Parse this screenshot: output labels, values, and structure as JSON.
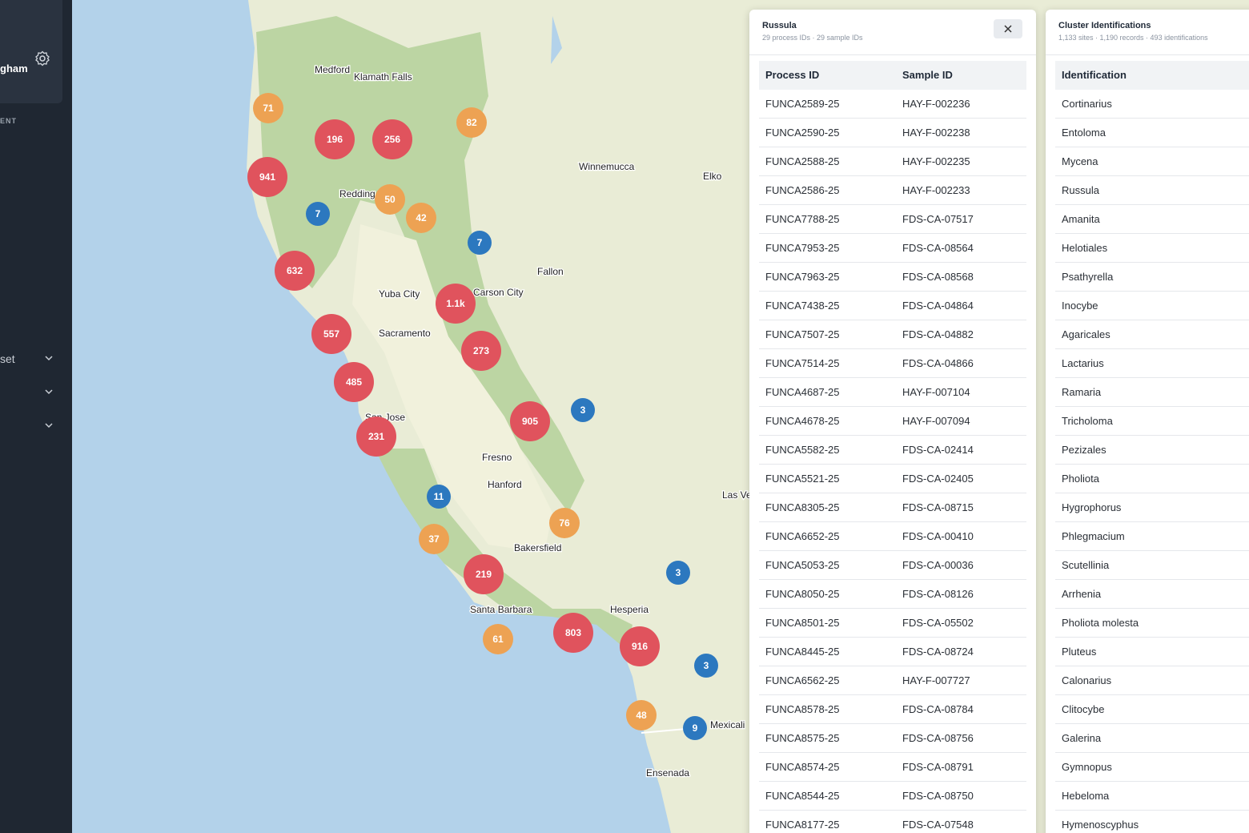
{
  "sidebar": {
    "user_name": "gham",
    "section_label": "ENT",
    "nav_items": [
      "set"
    ]
  },
  "map": {
    "places": [
      "Medford",
      "Klamath Falls",
      "Winnemucca",
      "Elko",
      "Redding",
      "Fallon",
      "Yuba City",
      "Carson City",
      "Sacramento",
      "San Jose",
      "Fresno",
      "Hanford",
      "Las Vegas",
      "Bakersfield",
      "Santa Barbara",
      "Hesperia",
      "Mexicali",
      "Ensenada"
    ],
    "clusters": [
      {
        "label": "71",
        "color": "#eda253"
      },
      {
        "label": "196",
        "color": "#e0535d"
      },
      {
        "label": "256",
        "color": "#e0535d"
      },
      {
        "label": "82",
        "color": "#eda253"
      },
      {
        "label": "941",
        "color": "#e0535d"
      },
      {
        "label": "7",
        "color": "#2c78bf"
      },
      {
        "label": "50",
        "color": "#eda253"
      },
      {
        "label": "42",
        "color": "#eda253"
      },
      {
        "label": "7",
        "color": "#2c78bf"
      },
      {
        "label": "632",
        "color": "#e0535d"
      },
      {
        "label": "1.1k",
        "color": "#e0535d"
      },
      {
        "label": "557",
        "color": "#e0535d"
      },
      {
        "label": "273",
        "color": "#e0535d"
      },
      {
        "label": "485",
        "color": "#e0535d"
      },
      {
        "label": "3",
        "color": "#2c78bf"
      },
      {
        "label": "905",
        "color": "#e0535d"
      },
      {
        "label": "231",
        "color": "#e0535d"
      },
      {
        "label": "11",
        "color": "#2c78bf"
      },
      {
        "label": "76",
        "color": "#eda253"
      },
      {
        "label": "37",
        "color": "#eda253"
      },
      {
        "label": "219",
        "color": "#e0535d"
      },
      {
        "label": "3",
        "color": "#2c78bf"
      },
      {
        "label": "61",
        "color": "#eda253"
      },
      {
        "label": "803",
        "color": "#e0535d"
      },
      {
        "label": "916",
        "color": "#e0535d"
      },
      {
        "label": "3",
        "color": "#2c78bf"
      },
      {
        "label": "48",
        "color": "#eda253"
      },
      {
        "label": "9",
        "color": "#2c78bf"
      }
    ]
  },
  "detail_panel": {
    "title": "Russula",
    "subtitle": "29 process IDs · 29 sample IDs",
    "table": {
      "columns": [
        "Process ID",
        "Sample ID"
      ],
      "rows": [
        [
          "FUNCA2589-25",
          "HAY-F-002236"
        ],
        [
          "FUNCA2590-25",
          "HAY-F-002238"
        ],
        [
          "FUNCA2588-25",
          "HAY-F-002235"
        ],
        [
          "FUNCA2586-25",
          "HAY-F-002233"
        ],
        [
          "FUNCA7788-25",
          "FDS-CA-07517"
        ],
        [
          "FUNCA7953-25",
          "FDS-CA-08564"
        ],
        [
          "FUNCA7963-25",
          "FDS-CA-08568"
        ],
        [
          "FUNCA7438-25",
          "FDS-CA-04864"
        ],
        [
          "FUNCA7507-25",
          "FDS-CA-04882"
        ],
        [
          "FUNCA7514-25",
          "FDS-CA-04866"
        ],
        [
          "FUNCA4687-25",
          "HAY-F-007104"
        ],
        [
          "FUNCA4678-25",
          "HAY-F-007094"
        ],
        [
          "FUNCA5582-25",
          "FDS-CA-02414"
        ],
        [
          "FUNCA5521-25",
          "FDS-CA-02405"
        ],
        [
          "FUNCA8305-25",
          "FDS-CA-08715"
        ],
        [
          "FUNCA6652-25",
          "FDS-CA-00410"
        ],
        [
          "FUNCA5053-25",
          "FDS-CA-00036"
        ],
        [
          "FUNCA8050-25",
          "FDS-CA-08126"
        ],
        [
          "FUNCA8501-25",
          "FDS-CA-05502"
        ],
        [
          "FUNCA8445-25",
          "FDS-CA-08724"
        ],
        [
          "FUNCA6562-25",
          "HAY-F-007727"
        ],
        [
          "FUNCA8578-25",
          "FDS-CA-08784"
        ],
        [
          "FUNCA8575-25",
          "FDS-CA-08756"
        ],
        [
          "FUNCA8574-25",
          "FDS-CA-08791"
        ],
        [
          "FUNCA8544-25",
          "FDS-CA-08750"
        ],
        [
          "FUNCA8177-25",
          "FDS-CA-07548"
        ]
      ]
    }
  },
  "cluster_panel": {
    "title": "Cluster Identifications",
    "subtitle": "1,133 sites · 1,190 records · 493 identifications",
    "table": {
      "columns": [
        "Identification"
      ],
      "rows": [
        "Cortinarius",
        "Entoloma",
        "Mycena",
        "Russula",
        "Amanita",
        "Helotiales",
        "Psathyrella",
        "Inocybe",
        "Agaricales",
        "Lactarius",
        "Ramaria",
        "Tricholoma",
        "Pezizales",
        "Pholiota",
        "Hygrophorus",
        "Phlegmacium",
        "Scutellinia",
        "Arrhenia",
        "Pholiota molesta",
        "Pluteus",
        "Calonarius",
        "Clitocybe",
        "Galerina",
        "Gymnopus",
        "Hebeloma",
        "Hymenoscyphus"
      ]
    }
  }
}
